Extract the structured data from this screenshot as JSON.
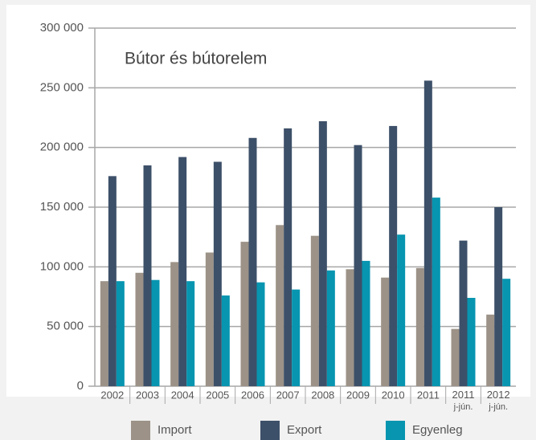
{
  "chart_data": {
    "type": "bar",
    "title": "Bútor és bútorelem",
    "categories": [
      "2002",
      "2003",
      "2004",
      "2005",
      "2006",
      "2007",
      "2008",
      "2009",
      "2010",
      "2011",
      "2011 j-jún.",
      "2012 j-jún."
    ],
    "series": [
      {
        "name": "Import",
        "color": "#9c9287",
        "values": [
          88000,
          95000,
          104000,
          112000,
          121000,
          135000,
          126000,
          98000,
          91000,
          99000,
          48000,
          60000
        ]
      },
      {
        "name": "Export",
        "color": "#3d5069",
        "values": [
          176000,
          185000,
          192000,
          188000,
          208000,
          216000,
          222000,
          202000,
          218000,
          256000,
          122000,
          150000
        ]
      },
      {
        "name": "Egyenleg",
        "color": "#0795b0",
        "values": [
          88000,
          89000,
          88000,
          76000,
          87000,
          81000,
          97000,
          105000,
          127000,
          158000,
          74000,
          90000
        ]
      }
    ],
    "ylim": [
      0,
      300000
    ],
    "yticks": [
      {
        "value": 0,
        "label": "0"
      },
      {
        "value": 50000,
        "label": "50 000"
      },
      {
        "value": 100000,
        "label": "100 000"
      },
      {
        "value": 150000,
        "label": "150 000"
      },
      {
        "value": 200000,
        "label": "200 000"
      },
      {
        "value": 250000,
        "label": "250 000"
      },
      {
        "value": 300000,
        "label": "300 000"
      }
    ],
    "grid": true
  }
}
